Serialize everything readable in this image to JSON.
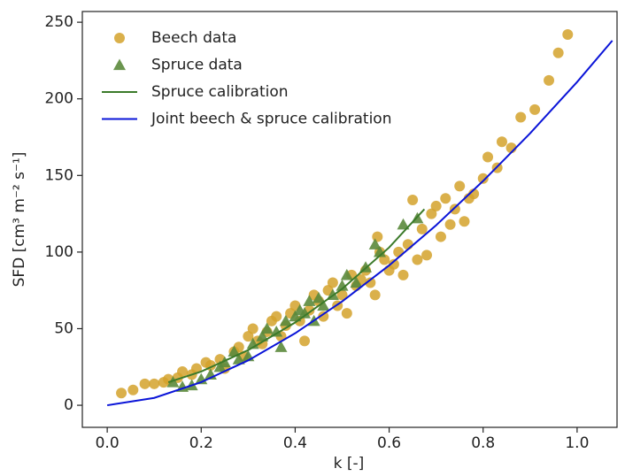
{
  "chart_data": {
    "type": "scatter",
    "xlabel": "k [-]",
    "ylabel": "SFD [cm³ m⁻² s⁻¹]",
    "xlim": [
      -0.053,
      1.085
    ],
    "ylim": [
      -14.4,
      257
    ],
    "xticks": [
      {
        "value": 0,
        "label": "0.0"
      },
      0.2,
      0.4,
      0.6,
      0.8,
      {
        "value": 1,
        "label": "1.0"
      }
    ],
    "yticks": [
      0,
      50,
      100,
      150,
      200,
      250
    ],
    "legend": "upper-left",
    "series": [
      {
        "name": "Beech data",
        "mark": "circle",
        "color": "#d4a22c",
        "x": [
          0.03,
          0.055,
          0.08,
          0.1,
          0.12,
          0.13,
          0.15,
          0.16,
          0.18,
          0.19,
          0.21,
          0.22,
          0.24,
          0.25,
          0.27,
          0.28,
          0.29,
          0.3,
          0.31,
          0.32,
          0.33,
          0.34,
          0.35,
          0.36,
          0.37,
          0.38,
          0.39,
          0.4,
          0.41,
          0.42,
          0.43,
          0.44,
          0.45,
          0.46,
          0.47,
          0.48,
          0.49,
          0.5,
          0.51,
          0.52,
          0.53,
          0.54,
          0.55,
          0.56,
          0.57,
          0.575,
          0.58,
          0.59,
          0.6,
          0.61,
          0.62,
          0.63,
          0.64,
          0.65,
          0.66,
          0.67,
          0.68,
          0.69,
          0.7,
          0.71,
          0.72,
          0.73,
          0.74,
          0.75,
          0.76,
          0.77,
          0.78,
          0.8,
          0.81,
          0.83,
          0.84,
          0.86,
          0.88,
          0.91,
          0.94,
          0.96,
          0.98
        ],
        "values": [
          8,
          10,
          14,
          14,
          15,
          17,
          18,
          22,
          20,
          24,
          28,
          26,
          30,
          24,
          35,
          38,
          32,
          45,
          50,
          42,
          40,
          48,
          55,
          58,
          45,
          52,
          60,
          65,
          55,
          42,
          62,
          72,
          68,
          58,
          75,
          80,
          65,
          72,
          60,
          85,
          78,
          82,
          88,
          80,
          72,
          110,
          100,
          95,
          88,
          92,
          100,
          85,
          105,
          134,
          95,
          115,
          98,
          125,
          130,
          110,
          135,
          118,
          128,
          143,
          120,
          135,
          138,
          148,
          162,
          155,
          172,
          168,
          188,
          193,
          212,
          230,
          242
        ]
      },
      {
        "name": "Spruce data",
        "mark": "triangle",
        "color": "#5b8a3c",
        "x": [
          0.14,
          0.16,
          0.18,
          0.2,
          0.22,
          0.24,
          0.25,
          0.27,
          0.28,
          0.3,
          0.31,
          0.33,
          0.34,
          0.36,
          0.37,
          0.38,
          0.4,
          0.41,
          0.42,
          0.43,
          0.44,
          0.45,
          0.46,
          0.48,
          0.5,
          0.51,
          0.53,
          0.55,
          0.57,
          0.58,
          0.63,
          0.66
        ],
        "values": [
          15,
          12,
          13,
          17,
          20,
          25,
          28,
          35,
          30,
          32,
          40,
          45,
          50,
          48,
          38,
          55,
          58,
          62,
          60,
          68,
          55,
          70,
          65,
          72,
          78,
          85,
          80,
          90,
          105,
          100,
          118,
          122
        ]
      },
      {
        "name": "Spruce calibration",
        "mark": "line",
        "color": "#3b7a2a",
        "x": [
          0.13,
          0.2,
          0.3,
          0.4,
          0.5,
          0.6,
          0.675
        ],
        "values": [
          15,
          22,
          36,
          54,
          76,
          103,
          128
        ]
      },
      {
        "name": "Joint beech & spruce calibration",
        "mark": "line",
        "color": "#0a14d8",
        "x": [
          0,
          0.1,
          0.2,
          0.3,
          0.4,
          0.5,
          0.6,
          0.7,
          0.8,
          0.9,
          1.0,
          1.075
        ],
        "values": [
          0,
          4.8,
          15.1,
          29.3,
          47,
          67.8,
          91.3,
          117.5,
          146.4,
          177.5,
          211,
          238
        ]
      }
    ]
  }
}
